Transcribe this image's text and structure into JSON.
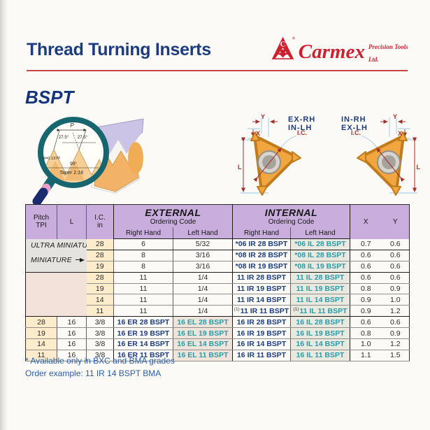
{
  "colors": {
    "navy_code": "#1c3d7f",
    "teal_code": "#2b9aa9",
    "header_lavender": "#c9aedd",
    "pitch_cream": "#fdeccb",
    "carmex_red": "#cf2030",
    "title_navy": "#1c3c7d",
    "insert_orange": "#f2a640",
    "note_blue": "#2a5ea6"
  },
  "header": {
    "title": "Thread Turning Inserts",
    "logo_brand": "Carmex",
    "logo_registered": "®",
    "logo_tagline": "Precision Tools Ltd."
  },
  "section": {
    "title": "BSPT"
  },
  "profile_diagram": {
    "p": "P",
    "angle_left": "27.5°",
    "angle_right": "27.5°",
    "radius": "R=0.137P",
    "angle_90": "90°",
    "taper": "Taper 1:16"
  },
  "insert_diagrams": {
    "left_label_line1": "EX-RH",
    "left_label_line2": "IN-LH",
    "right_label_line1": "IN-RH",
    "right_label_line2": "EX-LH",
    "dim_x": "X",
    "dim_y": "Y",
    "dim_l": "L",
    "dim_ic": "I.C."
  },
  "table": {
    "headers": {
      "pitch": "Pitch",
      "tpi": "TPI",
      "l": "L",
      "ic": "I.C.",
      "ic_unit": "in",
      "external": "EXTERNAL",
      "internal": "INTERNAL",
      "ordering_code": "Ordering Code",
      "right_hand": "Right Hand",
      "left_hand": "Left Hand",
      "x": "X",
      "y": "Y"
    },
    "external_bands": [
      "ULTRA MINIATURE",
      "MINIATURE"
    ],
    "group_end_rows": [
      0,
      2,
      6
    ],
    "rows": [
      {
        "pitch": "28",
        "l": "6",
        "ic": "5/32",
        "int_rh": "*06 IR 28 BSPT",
        "int_lh": "*06 IL 28 BSPT",
        "x": "0.7",
        "y": "0.6"
      },
      {
        "pitch": "28",
        "l": "8",
        "ic": "3/16",
        "int_rh": "*08 IR 28 BSPT",
        "int_lh": "*08 IL 28 BSPT",
        "x": "0.6",
        "y": "0.6"
      },
      {
        "pitch": "19",
        "l": "8",
        "ic": "3/16",
        "int_rh": "*08 IR 19 BSPT",
        "int_lh": "*08 IL 19 BSPT",
        "x": "0.6",
        "y": "0.6"
      },
      {
        "pitch": "28",
        "l": "11",
        "ic": "1/4",
        "int_rh": "11 IR 28 BSPT",
        "int_lh": "11 IL 28 BSPT",
        "x": "0.6",
        "y": "0.6"
      },
      {
        "pitch": "19",
        "l": "11",
        "ic": "1/4",
        "int_rh": "11 IR 19 BSPT",
        "int_lh": "11 IL 19 BSPT",
        "x": "0.8",
        "y": "0.9"
      },
      {
        "pitch": "14",
        "l": "11",
        "ic": "1/4",
        "int_rh": "11 IR 14 BSPT",
        "int_lh": "11 IL 14 BSPT",
        "x": "0.9",
        "y": "1.0"
      },
      {
        "pitch": "11",
        "l": "11",
        "ic": "1/4",
        "footnote_mark": "(1)",
        "int_rh": "11 IR 11 BSPT",
        "int_lh": "11 IL 11 BSPT",
        "x": "0.9",
        "y": "1.2"
      },
      {
        "pitch": "28",
        "l": "16",
        "ic": "3/8",
        "ext_rh": "16 ER 28 BSPT",
        "ext_lh": "16 EL 28 BSPT",
        "int_rh": "16 IR 28 BSPT",
        "int_lh": "16 IL 28 BSPT",
        "x": "0.6",
        "y": "0.6"
      },
      {
        "pitch": "19",
        "l": "16",
        "ic": "3/8",
        "ext_rh": "16 ER 19 BSPT",
        "ext_lh": "16 EL 19 BSPT",
        "int_rh": "16 IR 19 BSPT",
        "int_lh": "16 IL 19 BSPT",
        "x": "0.8",
        "y": "0.9"
      },
      {
        "pitch": "14",
        "l": "16",
        "ic": "3/8",
        "ext_rh": "16 ER 14 BSPT",
        "ext_lh": "16 EL 14 BSPT",
        "int_rh": "16 IR 14 BSPT",
        "int_lh": "16 IL 14 BSPT",
        "x": "1.0",
        "y": "1.2"
      },
      {
        "pitch": "11",
        "l": "16",
        "ic": "3/8",
        "ext_rh": "16 ER 11 BSPT",
        "ext_lh": "16 EL 11 BSPT",
        "int_rh": "16 IR 11 BSPT",
        "int_lh": "16 IL 11 BSPT",
        "x": "1.1",
        "y": "1.5"
      }
    ]
  },
  "notes": {
    "line1": "* Available only in BXC and BMA grades",
    "line2": "Order example: 11 IR 14 BSPT BMA"
  }
}
